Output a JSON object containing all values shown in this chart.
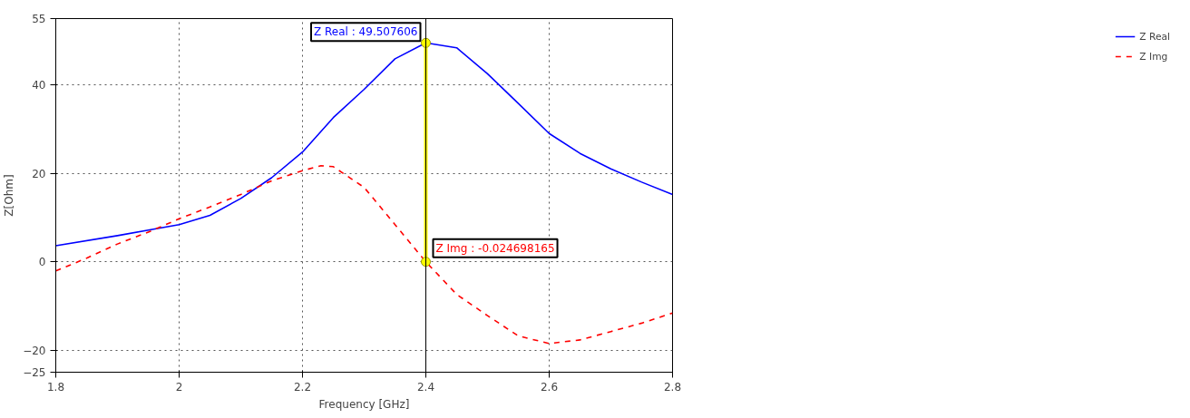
{
  "chart_data": {
    "type": "line",
    "xlabel": "Frequency [GHz]",
    "ylabel": "Z[Ohm]",
    "xlim": [
      1.8,
      2.8
    ],
    "ylim": [
      -25,
      55
    ],
    "xticks": [
      1.8,
      2,
      2.2,
      2.4,
      2.6,
      2.8
    ],
    "yticks": [
      -25,
      -20,
      0,
      20,
      40,
      55
    ],
    "grid": true,
    "legend": "top right",
    "series": [
      {
        "name": "Z Real",
        "color": "#0000ff",
        "line_style": "solid",
        "x": [
          1.8,
          1.9,
          2.0,
          2.05,
          2.1,
          2.15,
          2.2,
          2.25,
          2.3,
          2.35,
          2.4,
          2.45,
          2.5,
          2.55,
          2.6,
          2.65,
          2.7,
          2.75,
          2.8
        ],
        "values": [
          3.6,
          5.9,
          8.4,
          10.5,
          14.3,
          19,
          24.8,
          32.6,
          39,
          45.9,
          49.507606,
          48.4,
          42.5,
          35.8,
          29,
          24.5,
          21,
          18,
          15.2
        ]
      },
      {
        "name": "Z Img",
        "color": "#ff0000",
        "line_style": "dashed",
        "x": [
          1.8,
          1.85,
          1.9,
          1.95,
          2.0,
          2.05,
          2.1,
          2.15,
          2.2,
          2.23,
          2.25,
          2.3,
          2.35,
          2.4,
          2.45,
          2.5,
          2.55,
          2.6,
          2.65,
          2.7,
          2.75,
          2.8
        ],
        "values": [
          -2.1,
          0.8,
          4,
          6.7,
          9.7,
          12.4,
          15.2,
          18.3,
          20.6,
          21.7,
          21.5,
          16.8,
          8.4,
          -0.024698165,
          -7.4,
          -12.2,
          -16.8,
          -18.5,
          -17.7,
          -15.8,
          -13.9,
          -11.6
        ]
      },
      {
        "color": "#ffff00",
        "line_style": "solid",
        "marker": "circle",
        "x": [
          2.4,
          2.4
        ],
        "values": [
          -0.024698165,
          49.507606
        ]
      }
    ],
    "ref_lines": [
      {
        "axis": "x",
        "value": 2.4,
        "color": "#000000"
      }
    ],
    "annotations": [
      {
        "text": "Z Real : 49.507606",
        "x": 2.4,
        "y": 49.507606
      },
      {
        "text": "Z Img : -0.024698165",
        "x": 2.4,
        "y": -0.024698165
      }
    ]
  }
}
